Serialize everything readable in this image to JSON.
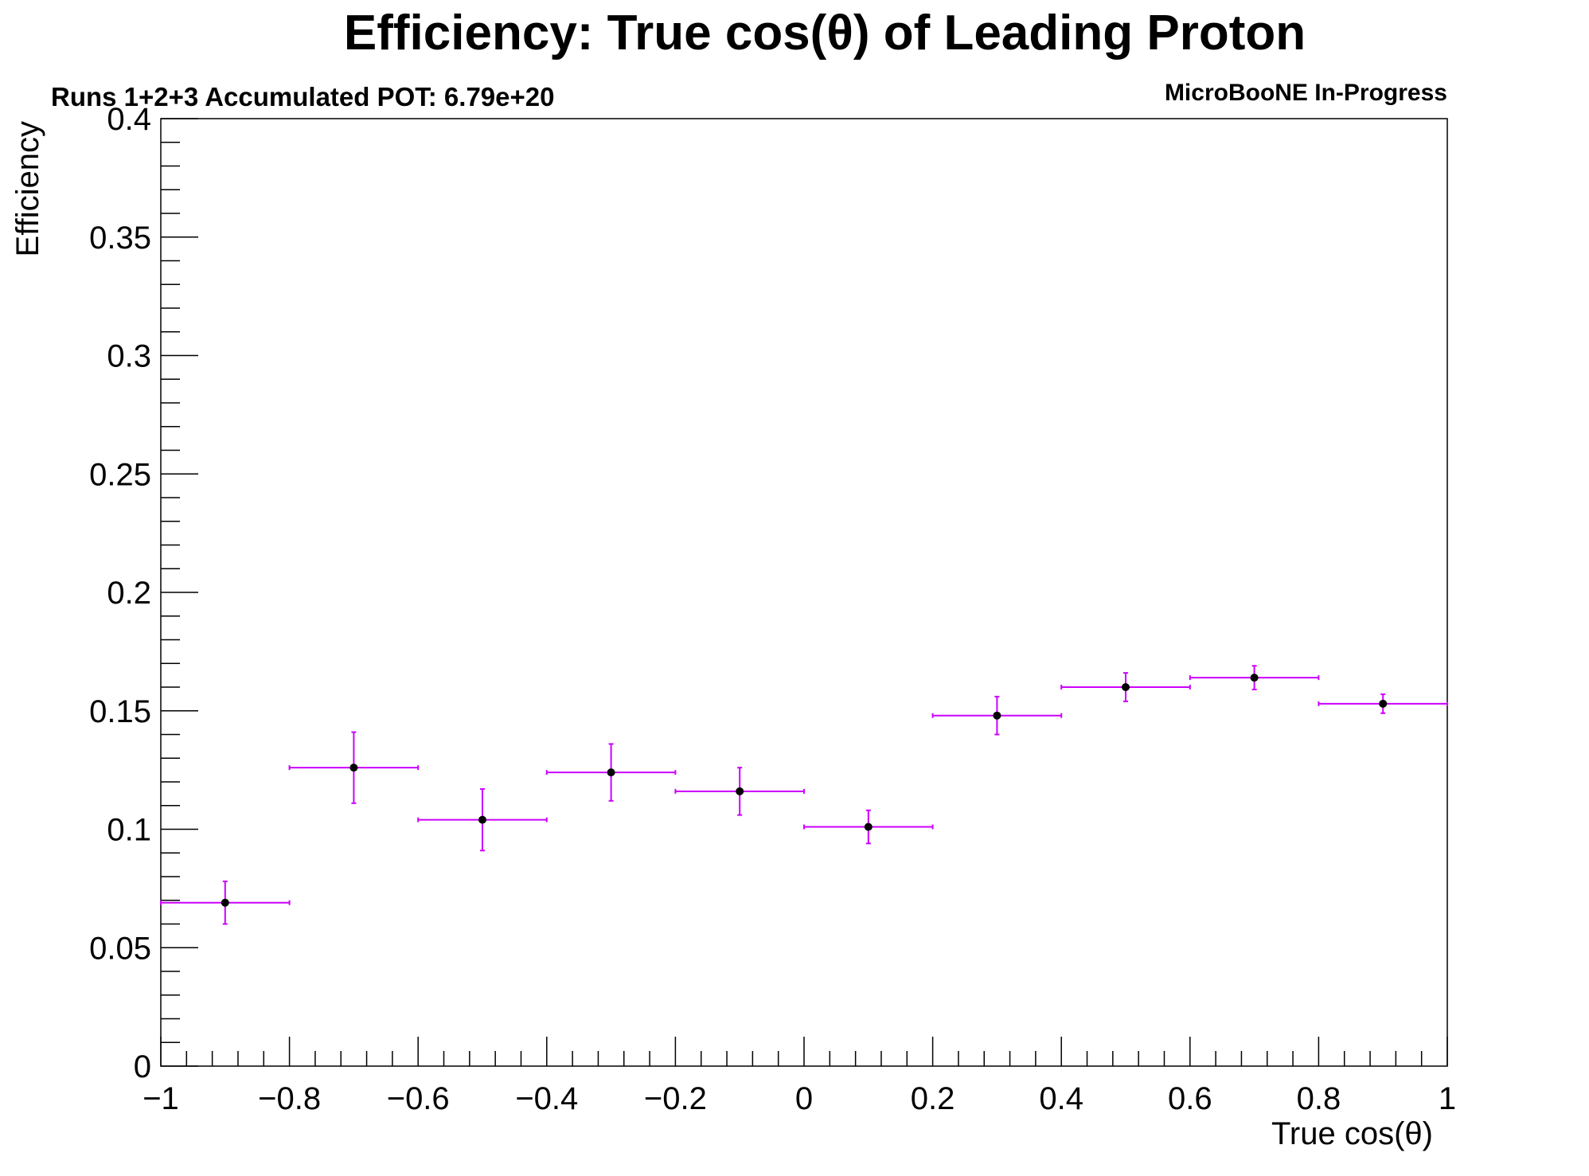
{
  "chart_data": {
    "type": "scatter",
    "title": "Efficiency: True cos(θ) of Leading Proton",
    "subtitle_left": "Runs 1+2+3 Accumulated POT: 6.79e+20",
    "subtitle_right": "MicroBooNE In-Progress",
    "xlabel": "True cos(θ)",
    "ylabel": "Efficiency",
    "xlim": [
      -1,
      1
    ],
    "ylim": [
      0,
      0.4
    ],
    "x_ticks": [
      -1,
      -0.8,
      -0.6,
      -0.4,
      -0.2,
      0,
      0.2,
      0.4,
      0.6,
      0.8,
      1
    ],
    "x_tick_labels": [
      "−1",
      "−0.8",
      "−0.6",
      "−0.4",
      "−0.2",
      "0",
      "0.2",
      "0.4",
      "0.6",
      "0.8",
      "1"
    ],
    "y_ticks": [
      0,
      0.05,
      0.1,
      0.15,
      0.2,
      0.25,
      0.3,
      0.35,
      0.4
    ],
    "y_tick_labels": [
      "0",
      "0.05",
      "0.1",
      "0.15",
      "0.2",
      "0.25",
      "0.3",
      "0.35",
      "0.4"
    ],
    "grid": false,
    "marker_color": "#000000",
    "error_bar_color": "#cc00ff",
    "points": [
      {
        "x": -0.9,
        "y": 0.069,
        "xerr": 0.1,
        "yerr": 0.009
      },
      {
        "x": -0.7,
        "y": 0.126,
        "xerr": 0.1,
        "yerr": 0.015
      },
      {
        "x": -0.5,
        "y": 0.104,
        "xerr": 0.1,
        "yerr": 0.013
      },
      {
        "x": -0.3,
        "y": 0.124,
        "xerr": 0.1,
        "yerr": 0.012
      },
      {
        "x": -0.1,
        "y": 0.116,
        "xerr": 0.1,
        "yerr": 0.01
      },
      {
        "x": 0.1,
        "y": 0.101,
        "xerr": 0.1,
        "yerr": 0.007
      },
      {
        "x": 0.3,
        "y": 0.148,
        "xerr": 0.1,
        "yerr": 0.008
      },
      {
        "x": 0.5,
        "y": 0.16,
        "xerr": 0.1,
        "yerr": 0.006
      },
      {
        "x": 0.7,
        "y": 0.164,
        "xerr": 0.1,
        "yerr": 0.005
      },
      {
        "x": 0.9,
        "y": 0.153,
        "xerr": 0.1,
        "yerr": 0.004
      }
    ]
  }
}
